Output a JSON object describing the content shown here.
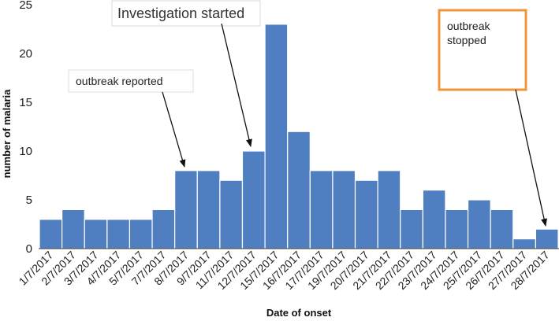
{
  "chart_data": {
    "type": "bar",
    "title": "",
    "xlabel": "Date of  onset",
    "ylabel": "number of malaria",
    "ylim": [
      0,
      25
    ],
    "yticks": [
      0,
      5,
      10,
      15,
      20,
      25
    ],
    "grid": false,
    "categories": [
      "1/7/2017",
      "2/7/2017",
      "3/7/2017",
      "4/7/2017",
      "5/7/2017",
      "7/7/2017",
      "8/7/2017",
      "9/7/2017",
      "11/7/2017",
      "12/7/2017",
      "15/7/2017",
      "16/7/2017",
      "17/7/2017",
      "19/7/2017",
      "20/7/2017",
      "21/7/2017",
      "22/7/2017",
      "23/7/2017",
      "24/7/2017",
      "25/7/2017",
      "26/7/2017",
      "27/7/2017",
      "28/7/2017"
    ],
    "values": [
      3,
      4,
      3,
      3,
      3,
      4,
      8,
      8,
      7,
      10,
      23,
      12,
      8,
      8,
      7,
      8,
      4,
      6,
      4,
      5,
      4,
      1,
      2
    ],
    "annotations": [
      {
        "text": "outbreak reported",
        "target_category": "8/7/2017"
      },
      {
        "text": "Investigation started",
        "target_category": "12/7/2017"
      },
      {
        "text": "outbreak stopped",
        "target_category": "28/7/2017"
      }
    ],
    "colors": {
      "bar": "#4f7fc0",
      "stopped_box_border": "#f0963a"
    }
  }
}
